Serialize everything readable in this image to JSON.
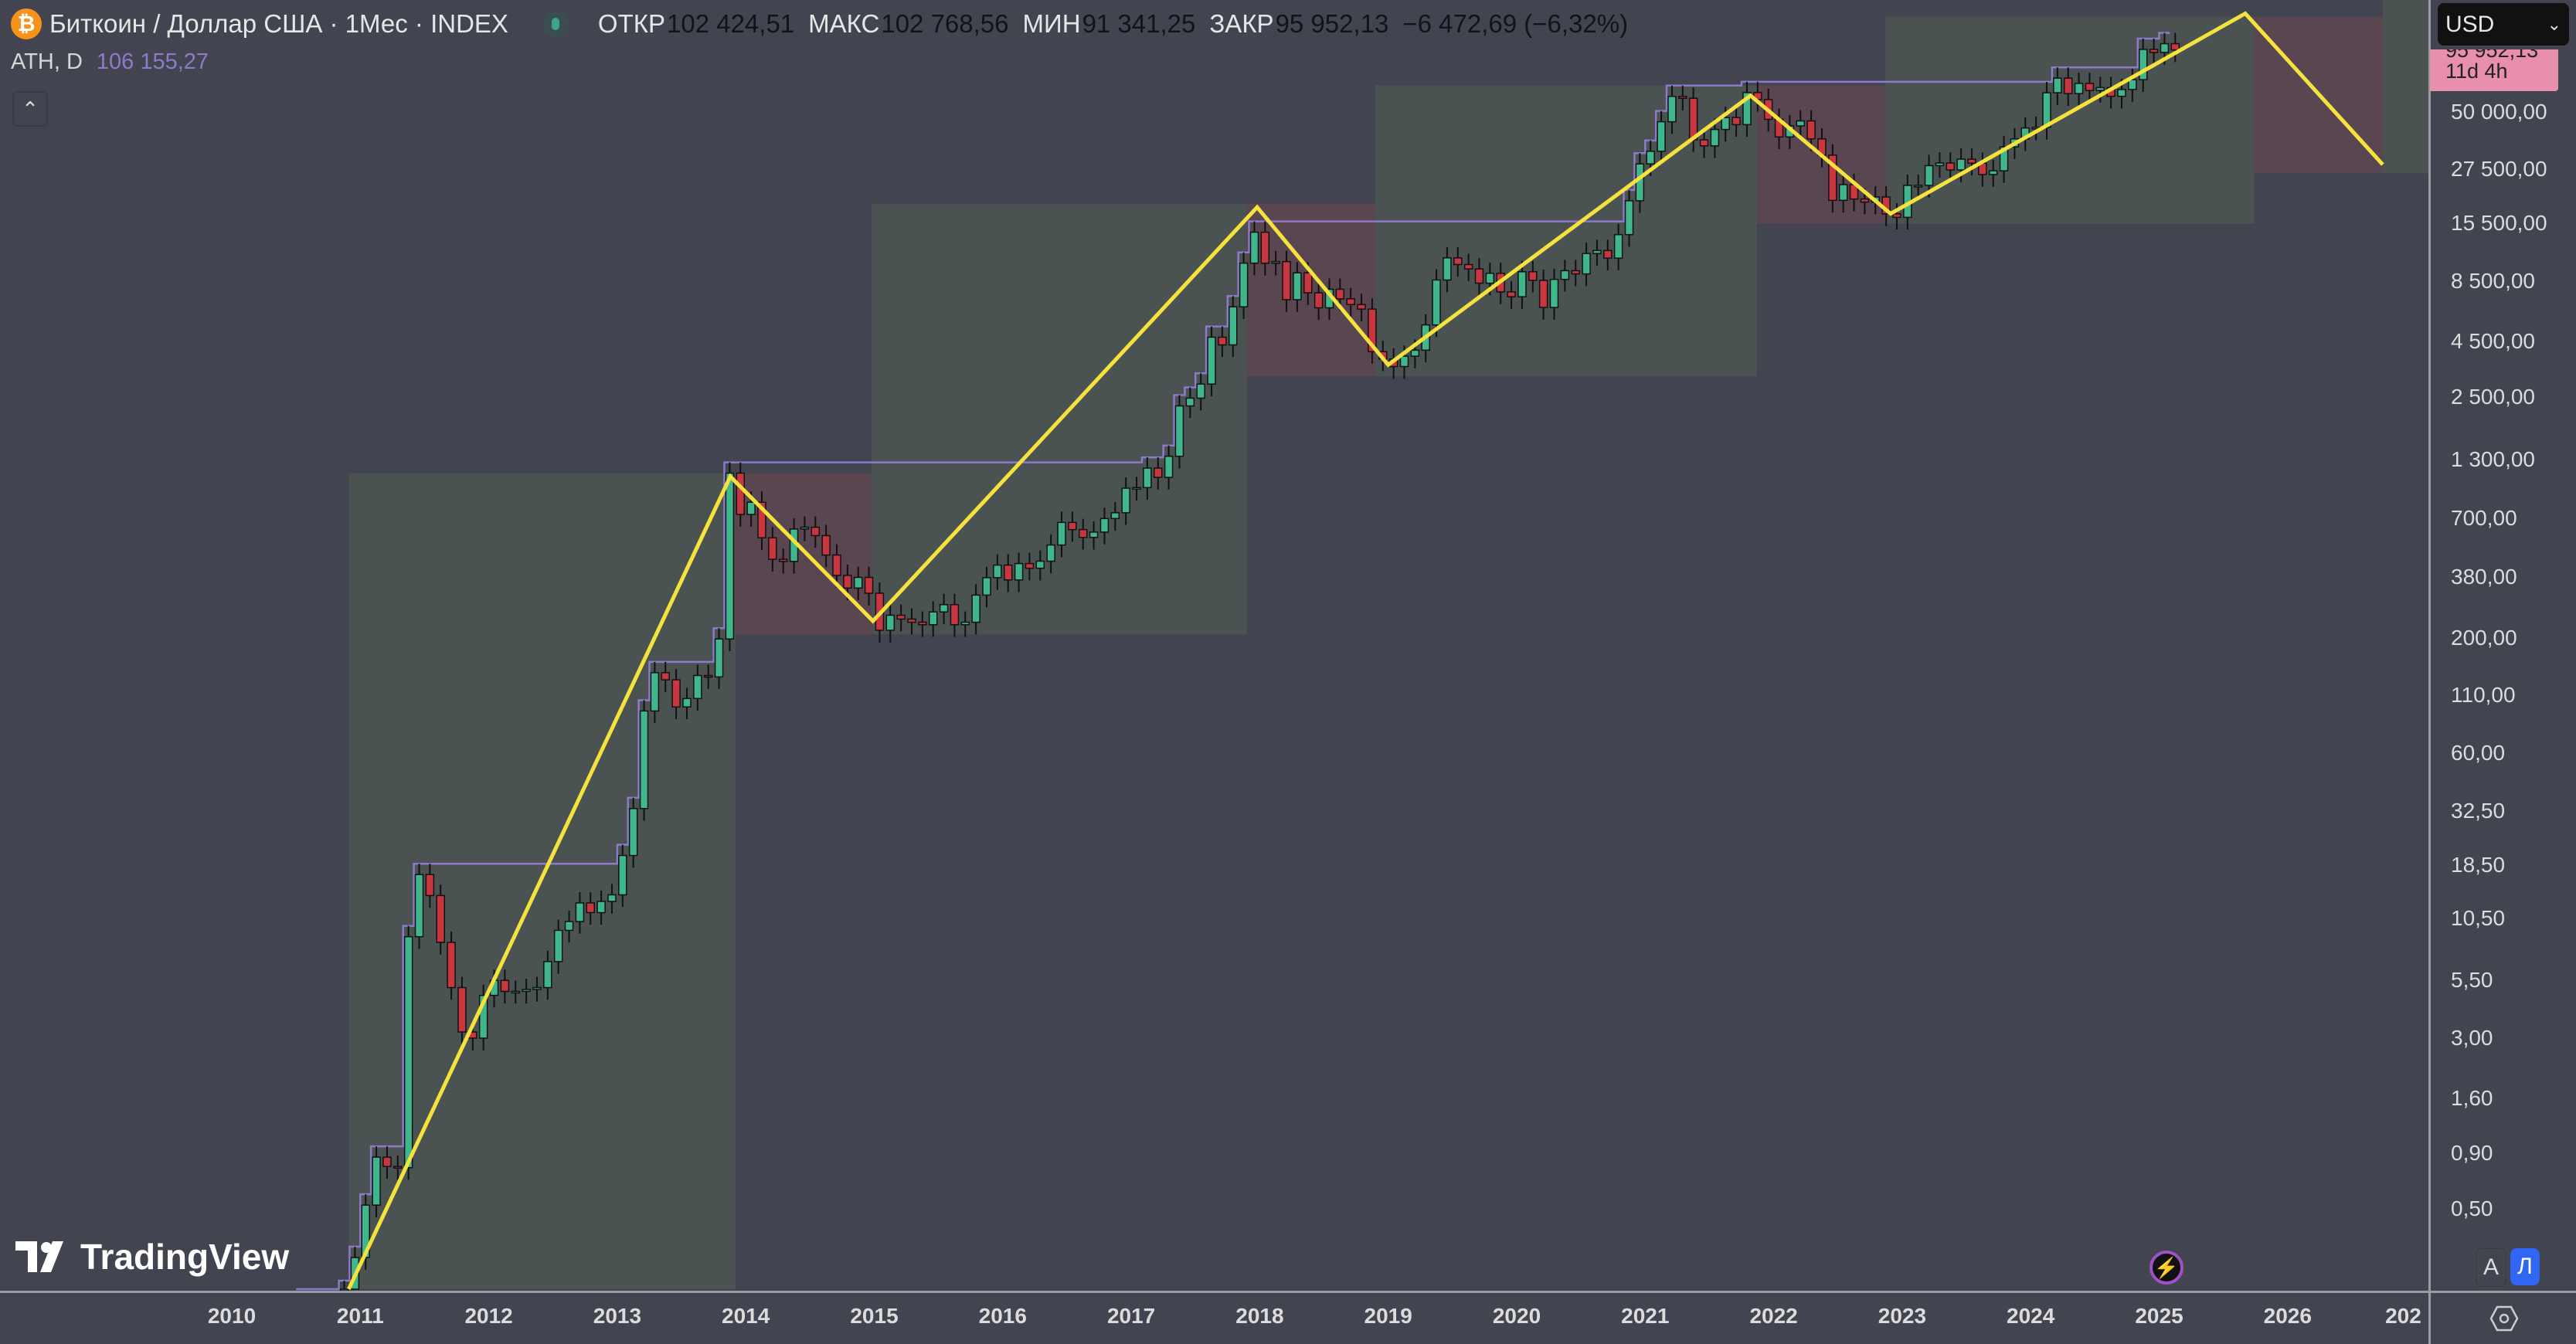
{
  "header": {
    "title": "Биткоин / Доллар США · 1Мес · INDEX",
    "open_label": "ОТКР",
    "open": "102 424,51",
    "high_label": "МАКС",
    "high": "102 768,56",
    "low_label": "МИН",
    "low": "91 341,25",
    "close_label": "ЗАКР",
    "close": "95 952,13",
    "change": "−6 472,69 (−6,32%)"
  },
  "indicator": {
    "name": "ATH, D",
    "value": "106 155,27",
    "color": "#8d7ac9"
  },
  "currency": "USD",
  "price_tag": {
    "price": "95 952,13",
    "countdown": "11d 4h",
    "color": "#e88fab"
  },
  "branding": "TradingView",
  "scale_buttons": {
    "auto": "A",
    "log": "Л"
  },
  "chart_data": {
    "type": "candlestick",
    "scale": "log",
    "price_ticks": [
      50000,
      27500,
      15500,
      8500,
      4500,
      2500,
      1300,
      700,
      380,
      200,
      110,
      60,
      32.5,
      18.5,
      10.5,
      5.5,
      3,
      1.6,
      0.9,
      0.5
    ],
    "price_tick_labels": [
      "50 000,00",
      "27 500,00",
      "15 500,00",
      "8 500,00",
      "4 500,00",
      "2 500,00",
      "1 300,00",
      "700,00",
      "380,00",
      "200,00",
      "110,00",
      "60,00",
      "32,50",
      "18,50",
      "10,50",
      "5,50",
      "3,00",
      "1,60",
      "0,90",
      "0,50"
    ],
    "time_ticks": [
      "2010",
      "2011",
      "2012",
      "2013",
      "2014",
      "2015",
      "2016",
      "2017",
      "2018",
      "2019",
      "2020",
      "2021",
      "2022",
      "2023",
      "2024",
      "2025",
      "2026",
      "202"
    ],
    "monthly_closes_start": "2010-07",
    "first_open": 0.05,
    "monthly_closes": {
      "2010": [
        0.07,
        0.06,
        0.06,
        0.19,
        0.21,
        0.3
      ],
      "2011": [
        0.52,
        0.86,
        0.78,
        0.77,
        8.7,
        16.7,
        13.4,
        8.2,
        5.1,
        3.2,
        3.0,
        4.7
      ],
      "2012": [
        5.5,
        4.9,
        4.9,
        5.0,
        5.1,
        6.7,
        9.3,
        10.2,
        12.4,
        11.2,
        12.6,
        13.5
      ],
      "2013": [
        20.4,
        33.4,
        93,
        139,
        129,
        97,
        106,
        135,
        133,
        198,
        1129,
        732
      ],
      "2014": [
        832,
        573,
        457,
        447,
        628,
        640,
        586,
        478,
        386,
        338,
        378,
        320
      ],
      "2015": [
        217,
        254,
        244,
        236,
        230,
        263,
        284,
        230,
        236,
        314,
        377,
        430
      ],
      "2016": [
        368,
        437,
        416,
        448,
        531,
        673,
        624,
        575,
        608,
        701,
        745,
        964
      ],
      "2017": [
        970,
        1190,
        1080,
        1348,
        2286,
        2480,
        2875,
        4703,
        4338,
        6468,
        10233,
        14156
      ],
      "2018": [
        10221,
        10397,
        6973,
        9240,
        7494,
        6404,
        7780,
        7037,
        6625,
        6318,
        4040,
        3742
      ],
      "2019": [
        3457,
        3854,
        4105,
        5350,
        8574,
        10817,
        10085,
        9630,
        8293,
        9199,
        7569,
        7193
      ],
      "2020": [
        9350,
        8544,
        6424,
        8629,
        9455,
        9138,
        11323,
        11681,
        10784,
        13805,
        19700,
        28990
      ],
      "2021": [
        33114,
        45137,
        58918,
        57750,
        37332,
        35041,
        41626,
        47167,
        43790,
        61318,
        57005,
        46306
      ],
      "2022": [
        38483,
        43194,
        45538,
        37714,
        31792,
        19785,
        23336,
        20050,
        19431,
        20495,
        17168,
        16547
      ],
      "2023": [
        23139,
        23147,
        28478,
        29268,
        27220,
        30477,
        29230,
        25940,
        26968,
        34667,
        37712,
        42265
      ],
      "2024": [
        42580,
        61198,
        71333,
        60637,
        67491,
        62678,
        64619,
        58970,
        63329,
        70215,
        96449,
        93429
      ],
      "2025": [
        102424,
        95952
      ]
    },
    "zigzag": [
      [
        2010.91,
        0.21
      ],
      [
        2013.88,
        1090
      ],
      [
        2014.99,
        239
      ],
      [
        2017.98,
        18400
      ],
      [
        2019.0,
        3520
      ],
      [
        2021.82,
        59400
      ],
      [
        2022.91,
        17200
      ],
      [
        2025.67,
        140600
      ],
      [
        2026.74,
        28800
      ]
    ],
    "zones": [
      {
        "type": "up",
        "from": 2010.91,
        "to": 2013.92,
        "low": 0.2,
        "high": 1127
      },
      {
        "type": "down",
        "from": 2013.92,
        "to": 2014.98,
        "low": 208,
        "high": 1127
      },
      {
        "type": "up",
        "from": 2014.98,
        "to": 2017.9,
        "low": 208,
        "high": 19100
      },
      {
        "type": "down",
        "from": 2017.9,
        "to": 2018.9,
        "low": 3120,
        "high": 19100
      },
      {
        "type": "up",
        "from": 2018.9,
        "to": 2021.87,
        "low": 3120,
        "high": 66000
      },
      {
        "type": "down",
        "from": 2021.87,
        "to": 2022.87,
        "low": 15500,
        "high": 66000
      },
      {
        "type": "up",
        "from": 2022.87,
        "to": 2025.74,
        "low": 15500,
        "high": 136000
      },
      {
        "type": "down",
        "from": 2025.74,
        "to": 2026.74,
        "low": 26300,
        "high": 136000
      },
      {
        "type": "up",
        "from": 2026.74,
        "to": 2027.2,
        "low": 26300,
        "high": 1000000
      }
    ],
    "colors": {
      "up": "#3fb68b",
      "down": "#c8373f",
      "zigzag": "#f5e23d",
      "ath": "#8d7ac9",
      "zone_up": "#4b5352",
      "zone_down": "#5a4650"
    }
  }
}
